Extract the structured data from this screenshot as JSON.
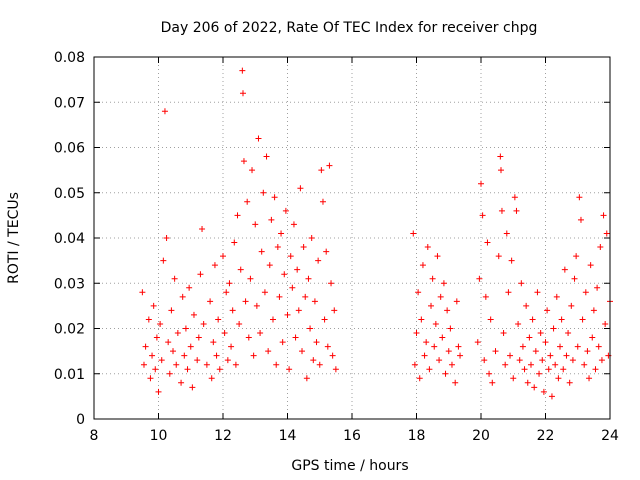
{
  "chart_data": {
    "type": "scatter",
    "title": "Day 206 of 2022, Rate Of TEC Index for receiver chpg",
    "xlabel": "GPS time / hours",
    "ylabel": "ROTI / TECUs",
    "xlim": [
      8,
      24
    ],
    "ylim": [
      0,
      0.08
    ],
    "xticks": [
      8,
      10,
      12,
      14,
      16,
      18,
      20,
      22,
      24
    ],
    "xtick_labels": [
      "8",
      "10",
      "12",
      "14",
      "16",
      "18",
      "20",
      "22",
      "24"
    ],
    "yticks": [
      0,
      0.01,
      0.02,
      0.03,
      0.04,
      0.05,
      0.06,
      0.07,
      0.08
    ],
    "ytick_labels": [
      "0",
      "0.01",
      "0.02",
      "0.03",
      "0.04",
      "0.05",
      "0.06",
      "0.07",
      "0.08"
    ],
    "grid": true,
    "marker": "+",
    "color": "#ff0000",
    "points": [
      [
        9.5,
        0.028
      ],
      [
        9.55,
        0.012
      ],
      [
        9.6,
        0.016
      ],
      [
        9.7,
        0.022
      ],
      [
        9.75,
        0.009
      ],
      [
        9.8,
        0.014
      ],
      [
        9.85,
        0.025
      ],
      [
        9.9,
        0.011
      ],
      [
        9.95,
        0.018
      ],
      [
        10.0,
        0.006
      ],
      [
        10.05,
        0.021
      ],
      [
        10.1,
        0.013
      ],
      [
        10.15,
        0.035
      ],
      [
        10.2,
        0.068
      ],
      [
        10.25,
        0.04
      ],
      [
        10.3,
        0.017
      ],
      [
        10.35,
        0.01
      ],
      [
        10.4,
        0.024
      ],
      [
        10.45,
        0.015
      ],
      [
        10.5,
        0.031
      ],
      [
        10.55,
        0.012
      ],
      [
        10.6,
        0.019
      ],
      [
        10.7,
        0.008
      ],
      [
        10.75,
        0.027
      ],
      [
        10.8,
        0.014
      ],
      [
        10.85,
        0.02
      ],
      [
        10.9,
        0.011
      ],
      [
        10.95,
        0.029
      ],
      [
        11.0,
        0.016
      ],
      [
        11.05,
        0.007
      ],
      [
        11.1,
        0.023
      ],
      [
        11.2,
        0.013
      ],
      [
        11.25,
        0.018
      ],
      [
        11.3,
        0.032
      ],
      [
        11.35,
        0.042
      ],
      [
        11.4,
        0.021
      ],
      [
        11.5,
        0.012
      ],
      [
        11.6,
        0.026
      ],
      [
        11.65,
        0.009
      ],
      [
        11.7,
        0.017
      ],
      [
        11.75,
        0.034
      ],
      [
        11.8,
        0.014
      ],
      [
        11.85,
        0.022
      ],
      [
        11.9,
        0.011
      ],
      [
        12.0,
        0.036
      ],
      [
        12.05,
        0.019
      ],
      [
        12.1,
        0.028
      ],
      [
        12.15,
        0.013
      ],
      [
        12.2,
        0.03
      ],
      [
        12.25,
        0.016
      ],
      [
        12.3,
        0.024
      ],
      [
        12.35,
        0.039
      ],
      [
        12.4,
        0.012
      ],
      [
        12.45,
        0.045
      ],
      [
        12.5,
        0.021
      ],
      [
        12.55,
        0.033
      ],
      [
        12.6,
        0.077
      ],
      [
        12.62,
        0.072
      ],
      [
        12.65,
        0.057
      ],
      [
        12.7,
        0.026
      ],
      [
        12.75,
        0.048
      ],
      [
        12.8,
        0.018
      ],
      [
        12.85,
        0.031
      ],
      [
        12.9,
        0.055
      ],
      [
        12.95,
        0.014
      ],
      [
        13.0,
        0.043
      ],
      [
        13.05,
        0.025
      ],
      [
        13.1,
        0.062
      ],
      [
        13.15,
        0.019
      ],
      [
        13.2,
        0.037
      ],
      [
        13.25,
        0.05
      ],
      [
        13.3,
        0.028
      ],
      [
        13.35,
        0.058
      ],
      [
        13.4,
        0.015
      ],
      [
        13.45,
        0.034
      ],
      [
        13.5,
        0.044
      ],
      [
        13.55,
        0.022
      ],
      [
        13.6,
        0.049
      ],
      [
        13.65,
        0.012
      ],
      [
        13.7,
        0.038
      ],
      [
        13.75,
        0.027
      ],
      [
        13.8,
        0.041
      ],
      [
        13.85,
        0.017
      ],
      [
        13.9,
        0.032
      ],
      [
        13.95,
        0.046
      ],
      [
        14.0,
        0.023
      ],
      [
        14.05,
        0.011
      ],
      [
        14.1,
        0.036
      ],
      [
        14.15,
        0.029
      ],
      [
        14.2,
        0.043
      ],
      [
        14.25,
        0.018
      ],
      [
        14.3,
        0.033
      ],
      [
        14.35,
        0.024
      ],
      [
        14.4,
        0.051
      ],
      [
        14.45,
        0.015
      ],
      [
        14.5,
        0.038
      ],
      [
        14.55,
        0.027
      ],
      [
        14.6,
        0.009
      ],
      [
        14.65,
        0.031
      ],
      [
        14.7,
        0.02
      ],
      [
        14.75,
        0.04
      ],
      [
        14.8,
        0.013
      ],
      [
        14.85,
        0.026
      ],
      [
        14.9,
        0.017
      ],
      [
        14.95,
        0.035
      ],
      [
        15.0,
        0.012
      ],
      [
        15.05,
        0.055
      ],
      [
        15.1,
        0.048
      ],
      [
        15.15,
        0.022
      ],
      [
        15.2,
        0.037
      ],
      [
        15.25,
        0.016
      ],
      [
        15.3,
        0.056
      ],
      [
        15.35,
        0.03
      ],
      [
        15.4,
        0.014
      ],
      [
        15.45,
        0.024
      ],
      [
        15.5,
        0.011
      ],
      [
        17.9,
        0.041
      ],
      [
        17.95,
        0.012
      ],
      [
        18.0,
        0.019
      ],
      [
        18.05,
        0.028
      ],
      [
        18.1,
        0.009
      ],
      [
        18.15,
        0.022
      ],
      [
        18.2,
        0.034
      ],
      [
        18.25,
        0.014
      ],
      [
        18.3,
        0.017
      ],
      [
        18.35,
        0.038
      ],
      [
        18.4,
        0.011
      ],
      [
        18.45,
        0.025
      ],
      [
        18.5,
        0.031
      ],
      [
        18.55,
        0.016
      ],
      [
        18.6,
        0.021
      ],
      [
        18.65,
        0.036
      ],
      [
        18.7,
        0.013
      ],
      [
        18.75,
        0.027
      ],
      [
        18.8,
        0.018
      ],
      [
        18.85,
        0.03
      ],
      [
        18.9,
        0.01
      ],
      [
        18.95,
        0.024
      ],
      [
        19.0,
        0.015
      ],
      [
        19.05,
        0.02
      ],
      [
        19.1,
        0.012
      ],
      [
        19.2,
        0.008
      ],
      [
        19.25,
        0.026
      ],
      [
        19.3,
        0.016
      ],
      [
        19.35,
        0.014
      ],
      [
        19.9,
        0.017
      ],
      [
        19.95,
        0.031
      ],
      [
        20.0,
        0.052
      ],
      [
        20.05,
        0.045
      ],
      [
        20.1,
        0.013
      ],
      [
        20.15,
        0.027
      ],
      [
        20.2,
        0.039
      ],
      [
        20.25,
        0.01
      ],
      [
        20.3,
        0.022
      ],
      [
        20.35,
        0.008
      ],
      [
        20.45,
        0.015
      ],
      [
        20.55,
        0.036
      ],
      [
        20.6,
        0.058
      ],
      [
        20.62,
        0.055
      ],
      [
        20.65,
        0.046
      ],
      [
        20.7,
        0.019
      ],
      [
        20.75,
        0.012
      ],
      [
        20.8,
        0.041
      ],
      [
        20.85,
        0.028
      ],
      [
        20.9,
        0.014
      ],
      [
        20.95,
        0.035
      ],
      [
        21.0,
        0.009
      ],
      [
        21.05,
        0.049
      ],
      [
        21.1,
        0.046
      ],
      [
        21.15,
        0.021
      ],
      [
        21.2,
        0.013
      ],
      [
        21.25,
        0.03
      ],
      [
        21.3,
        0.016
      ],
      [
        21.35,
        0.011
      ],
      [
        21.4,
        0.025
      ],
      [
        21.45,
        0.008
      ],
      [
        21.5,
        0.018
      ],
      [
        21.55,
        0.012
      ],
      [
        21.6,
        0.022
      ],
      [
        21.65,
        0.007
      ],
      [
        21.7,
        0.015
      ],
      [
        21.75,
        0.028
      ],
      [
        21.8,
        0.01
      ],
      [
        21.85,
        0.019
      ],
      [
        21.9,
        0.013
      ],
      [
        21.95,
        0.006
      ],
      [
        22.0,
        0.017
      ],
      [
        22.05,
        0.024
      ],
      [
        22.1,
        0.011
      ],
      [
        22.15,
        0.014
      ],
      [
        22.2,
        0.005
      ],
      [
        22.25,
        0.02
      ],
      [
        22.3,
        0.012
      ],
      [
        22.35,
        0.027
      ],
      [
        22.4,
        0.009
      ],
      [
        22.45,
        0.016
      ],
      [
        22.5,
        0.022
      ],
      [
        22.55,
        0.011
      ],
      [
        22.6,
        0.033
      ],
      [
        22.65,
        0.014
      ],
      [
        22.7,
        0.019
      ],
      [
        22.75,
        0.008
      ],
      [
        22.8,
        0.025
      ],
      [
        22.85,
        0.013
      ],
      [
        22.9,
        0.031
      ],
      [
        22.95,
        0.036
      ],
      [
        23.0,
        0.016
      ],
      [
        23.05,
        0.049
      ],
      [
        23.1,
        0.044
      ],
      [
        23.15,
        0.022
      ],
      [
        23.2,
        0.012
      ],
      [
        23.25,
        0.028
      ],
      [
        23.3,
        0.015
      ],
      [
        23.35,
        0.009
      ],
      [
        23.4,
        0.034
      ],
      [
        23.45,
        0.018
      ],
      [
        23.5,
        0.024
      ],
      [
        23.55,
        0.011
      ],
      [
        23.6,
        0.029
      ],
      [
        23.65,
        0.016
      ],
      [
        23.7,
        0.038
      ],
      [
        23.75,
        0.013
      ],
      [
        23.8,
        0.045
      ],
      [
        23.85,
        0.021
      ],
      [
        23.9,
        0.041
      ],
      [
        23.95,
        0.014
      ],
      [
        24.0,
        0.026
      ]
    ]
  }
}
